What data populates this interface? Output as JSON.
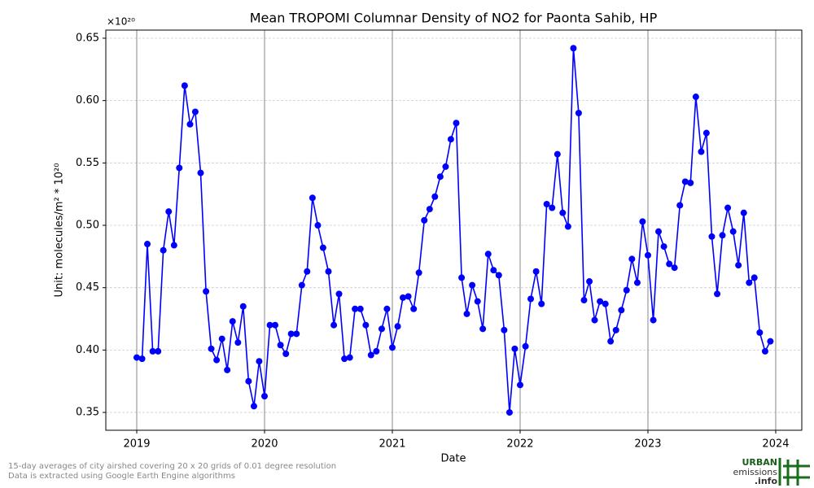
{
  "chart_data": {
    "type": "line",
    "title": "Mean TROPOMI Columnar Density of NO2 for Paonta Sahib, HP",
    "x_label": "Date",
    "y_label": "Unit: molecules/m² * 10²⁰",
    "y_offset_text": "×10²⁰",
    "footnotes": [
      "15-day averages of city airshed covering 20 x 20 grids of 0.01 degree resolution",
      "Data is extracted using Google Earth Engine algorithms"
    ],
    "logo": [
      "URBAN",
      "emissions",
      ".info"
    ],
    "xlim": [
      2018.758,
      2024.204
    ],
    "xticks": [
      2019,
      2020,
      2021,
      2022,
      2023,
      2024
    ],
    "ylim": [
      0.3357,
      0.6565
    ],
    "yticks": [
      {
        "value": 0.35,
        "label": "0.35"
      },
      {
        "value": 0.4,
        "label": "0.40"
      },
      {
        "value": 0.45,
        "label": "0.45"
      },
      {
        "value": 0.5,
        "label": "0.50"
      },
      {
        "value": 0.55,
        "label": "0.55"
      },
      {
        "value": 0.6,
        "label": "0.60"
      },
      {
        "value": 0.65,
        "label": "0.65"
      }
    ],
    "grid": true,
    "series": [
      {
        "color": "#0000ff",
        "x": [
          2019,
          2019.042,
          2019.083,
          2019.125,
          2019.167,
          2019.208,
          2019.25,
          2019.292,
          2019.333,
          2019.375,
          2019.417,
          2019.458,
          2019.5,
          2019.542,
          2019.583,
          2019.625,
          2019.667,
          2019.708,
          2019.75,
          2019.792,
          2019.833,
          2019.875,
          2019.917,
          2019.958,
          2020,
          2020.042,
          2020.083,
          2020.125,
          2020.167,
          2020.208,
          2020.25,
          2020.292,
          2020.333,
          2020.375,
          2020.417,
          2020.458,
          2020.5,
          2020.542,
          2020.583,
          2020.625,
          2020.667,
          2020.708,
          2020.75,
          2020.792,
          2020.833,
          2020.875,
          2020.917,
          2020.958,
          2021,
          2021.042,
          2021.083,
          2021.125,
          2021.167,
          2021.208,
          2021.25,
          2021.292,
          2021.333,
          2021.375,
          2021.417,
          2021.458,
          2021.5,
          2021.542,
          2021.583,
          2021.625,
          2021.667,
          2021.708,
          2021.75,
          2021.792,
          2021.833,
          2021.875,
          2021.917,
          2021.958,
          2022,
          2022.042,
          2022.083,
          2022.125,
          2022.167,
          2022.208,
          2022.25,
          2022.292,
          2022.333,
          2022.375,
          2022.417,
          2022.458,
          2022.5,
          2022.542,
          2022.583,
          2022.625,
          2022.667,
          2022.708,
          2022.75,
          2022.792,
          2022.833,
          2022.875,
          2022.917,
          2022.958,
          2023,
          2023.042,
          2023.083,
          2023.125,
          2023.167,
          2023.208,
          2023.25,
          2023.292,
          2023.333,
          2023.375,
          2023.417,
          2023.458,
          2023.5,
          2023.542,
          2023.583,
          2023.625,
          2023.667,
          2023.708,
          2023.75,
          2023.792,
          2023.833,
          2023.875,
          2023.917,
          2023.958
        ],
        "values": [
          0.394,
          0.393,
          0.485,
          0.399,
          0.399,
          0.48,
          0.511,
          0.484,
          0.546,
          0.612,
          0.581,
          0.591,
          0.542,
          0.447,
          0.401,
          0.392,
          0.409,
          0.384,
          0.423,
          0.406,
          0.435,
          0.375,
          0.355,
          0.391,
          0.363,
          0.42,
          0.42,
          0.404,
          0.397,
          0.413,
          0.413,
          0.452,
          0.463,
          0.522,
          0.5,
          0.482,
          0.463,
          0.42,
          0.445,
          0.393,
          0.394,
          0.433,
          0.433,
          0.42,
          0.396,
          0.399,
          0.417,
          0.433,
          0.402,
          0.419,
          0.442,
          0.443,
          0.433,
          0.462,
          0.504,
          0.513,
          0.523,
          0.539,
          0.547,
          0.569,
          0.582,
          0.458,
          0.429,
          0.452,
          0.439,
          0.417,
          0.477,
          0.464,
          0.46,
          0.416,
          0.35,
          0.401,
          0.372,
          0.403,
          0.441,
          0.463,
          0.437,
          0.517,
          0.514,
          0.557,
          0.51,
          0.499,
          0.642,
          0.59,
          0.44,
          0.455,
          0.424,
          0.439,
          0.437,
          0.407,
          0.416,
          0.432,
          0.448,
          0.473,
          0.454,
          0.503,
          0.476,
          0.424,
          0.495,
          0.483,
          0.469,
          0.466,
          0.516,
          0.535,
          0.534,
          0.603,
          0.559,
          0.574,
          0.491,
          0.445,
          0.492,
          0.514,
          0.495,
          0.468,
          0.51,
          0.454,
          0.458,
          0.414,
          0.399,
          0.407
        ]
      }
    ]
  }
}
